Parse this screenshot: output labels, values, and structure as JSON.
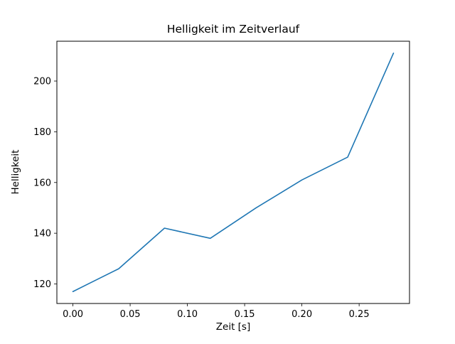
{
  "chart_data": {
    "type": "line",
    "title": "Helligkeit im Zeitverlauf",
    "xlabel": "Zeit [s]",
    "ylabel": "Helligkeit",
    "x": [
      0.0,
      0.04,
      0.08,
      0.12,
      0.16,
      0.2,
      0.24,
      0.28
    ],
    "y": [
      117,
      126,
      142,
      138,
      150,
      161,
      170,
      211
    ],
    "series": [
      {
        "name": "Helligkeit",
        "x": [
          0.0,
          0.04,
          0.08,
          0.12,
          0.16,
          0.2,
          0.24,
          0.28
        ],
        "values": [
          117,
          126,
          142,
          138,
          150,
          161,
          170,
          211
        ]
      }
    ],
    "xticks": [
      0.0,
      0.05,
      0.1,
      0.15,
      0.2,
      0.25
    ],
    "xtick_labels": [
      "0.00",
      "0.05",
      "0.10",
      "0.15",
      "0.20",
      "0.25"
    ],
    "yticks": [
      120,
      140,
      160,
      180,
      200
    ],
    "ytick_labels": [
      "120",
      "140",
      "160",
      "180",
      "200"
    ],
    "xlim": [
      -0.014,
      0.294
    ],
    "ylim": [
      112.3,
      215.7
    ],
    "grid": false,
    "legend_position": "none",
    "colors": {
      "line": "#1f77b4",
      "spine": "#000000",
      "background": "#ffffff"
    }
  }
}
